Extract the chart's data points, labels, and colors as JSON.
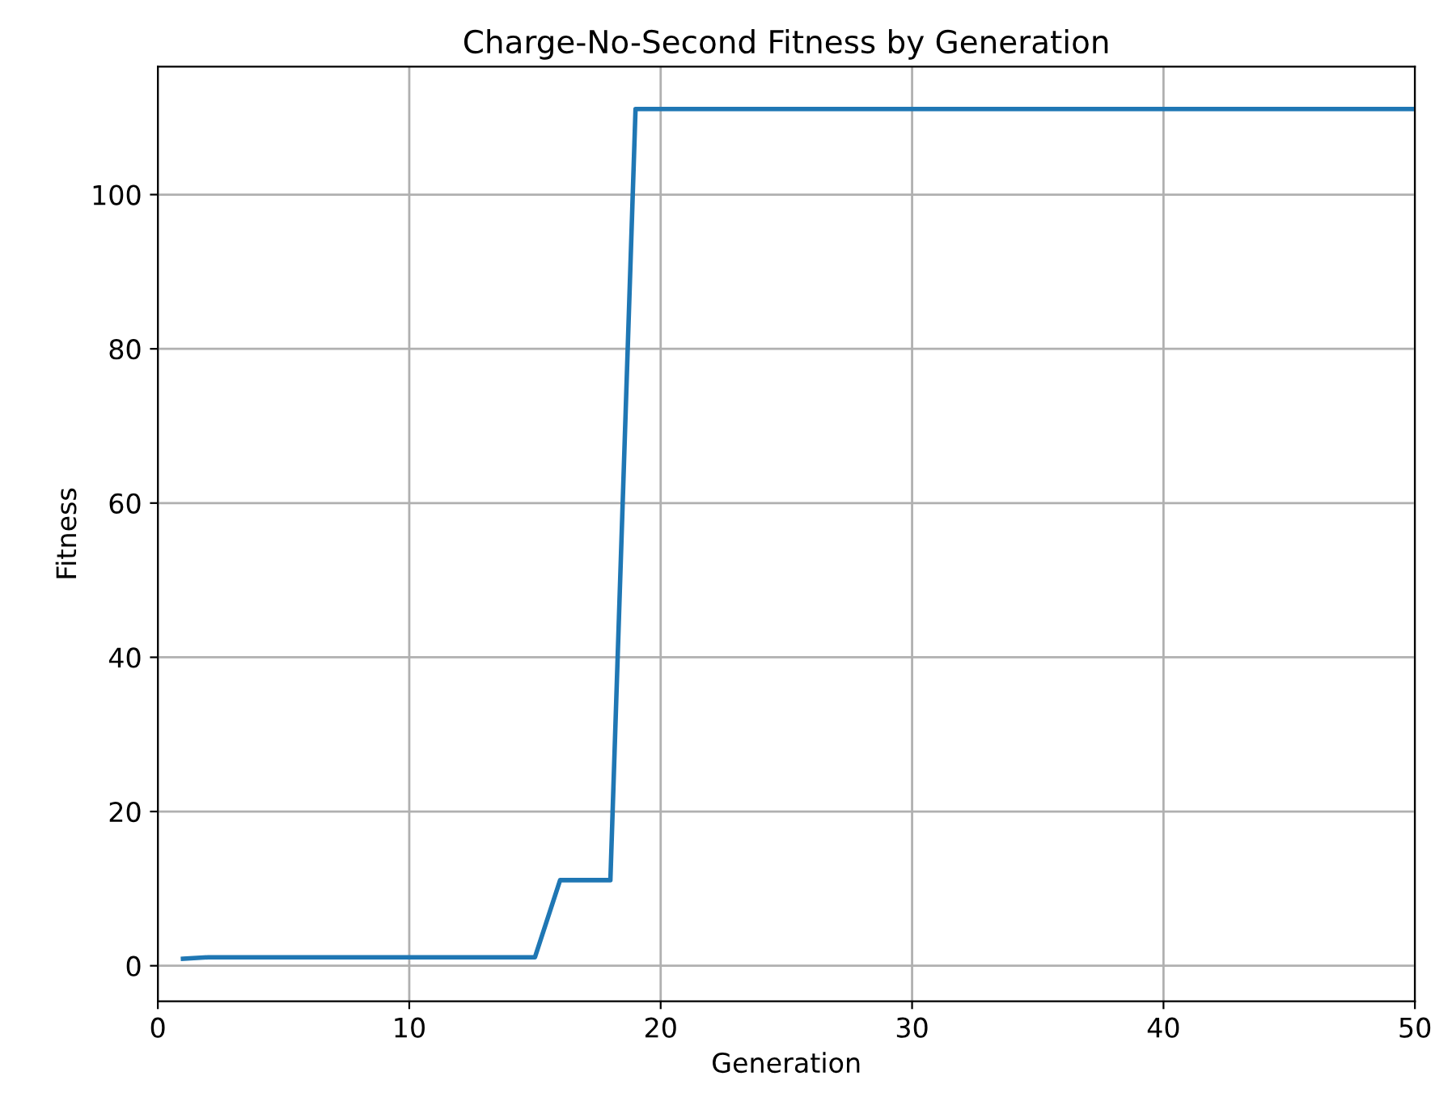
{
  "chart_data": {
    "type": "line",
    "title": "Charge-No-Second Fitness by Generation",
    "xlabel": "Generation",
    "ylabel": "Fitness",
    "x": [
      1,
      2,
      3,
      4,
      5,
      6,
      7,
      8,
      9,
      10,
      11,
      12,
      13,
      14,
      15,
      16,
      17,
      18,
      19,
      20,
      21,
      22,
      23,
      24,
      25,
      26,
      27,
      28,
      29,
      30,
      31,
      32,
      33,
      34,
      35,
      36,
      37,
      38,
      39,
      40,
      41,
      42,
      43,
      44,
      45,
      46,
      47,
      48,
      49,
      50
    ],
    "series": [
      {
        "color": "#1f77b4",
        "values": [
          0.9,
          1.1,
          1.1,
          1.1,
          1.1,
          1.1,
          1.1,
          1.1,
          1.1,
          1.1,
          1.1,
          1.1,
          1.1,
          1.1,
          1.1,
          11.1,
          11.1,
          11.1,
          111.1,
          111.1,
          111.1,
          111.1,
          111.1,
          111.1,
          111.1,
          111.1,
          111.1,
          111.1,
          111.1,
          111.1,
          111.1,
          111.1,
          111.1,
          111.1,
          111.1,
          111.1,
          111.1,
          111.1,
          111.1,
          111.1,
          111.1,
          111.1,
          111.1,
          111.1,
          111.1,
          111.1,
          111.1,
          111.1,
          111.1,
          111.1
        ]
      }
    ],
    "xlim": [
      0,
      50
    ],
    "xticks": [
      0,
      10,
      20,
      30,
      40,
      50
    ],
    "ylim": [
      -4.6,
      116.6
    ],
    "yticks": [
      0,
      20,
      40,
      60,
      80,
      100
    ],
    "grid": true,
    "marker": "none",
    "line_style": "solid"
  }
}
